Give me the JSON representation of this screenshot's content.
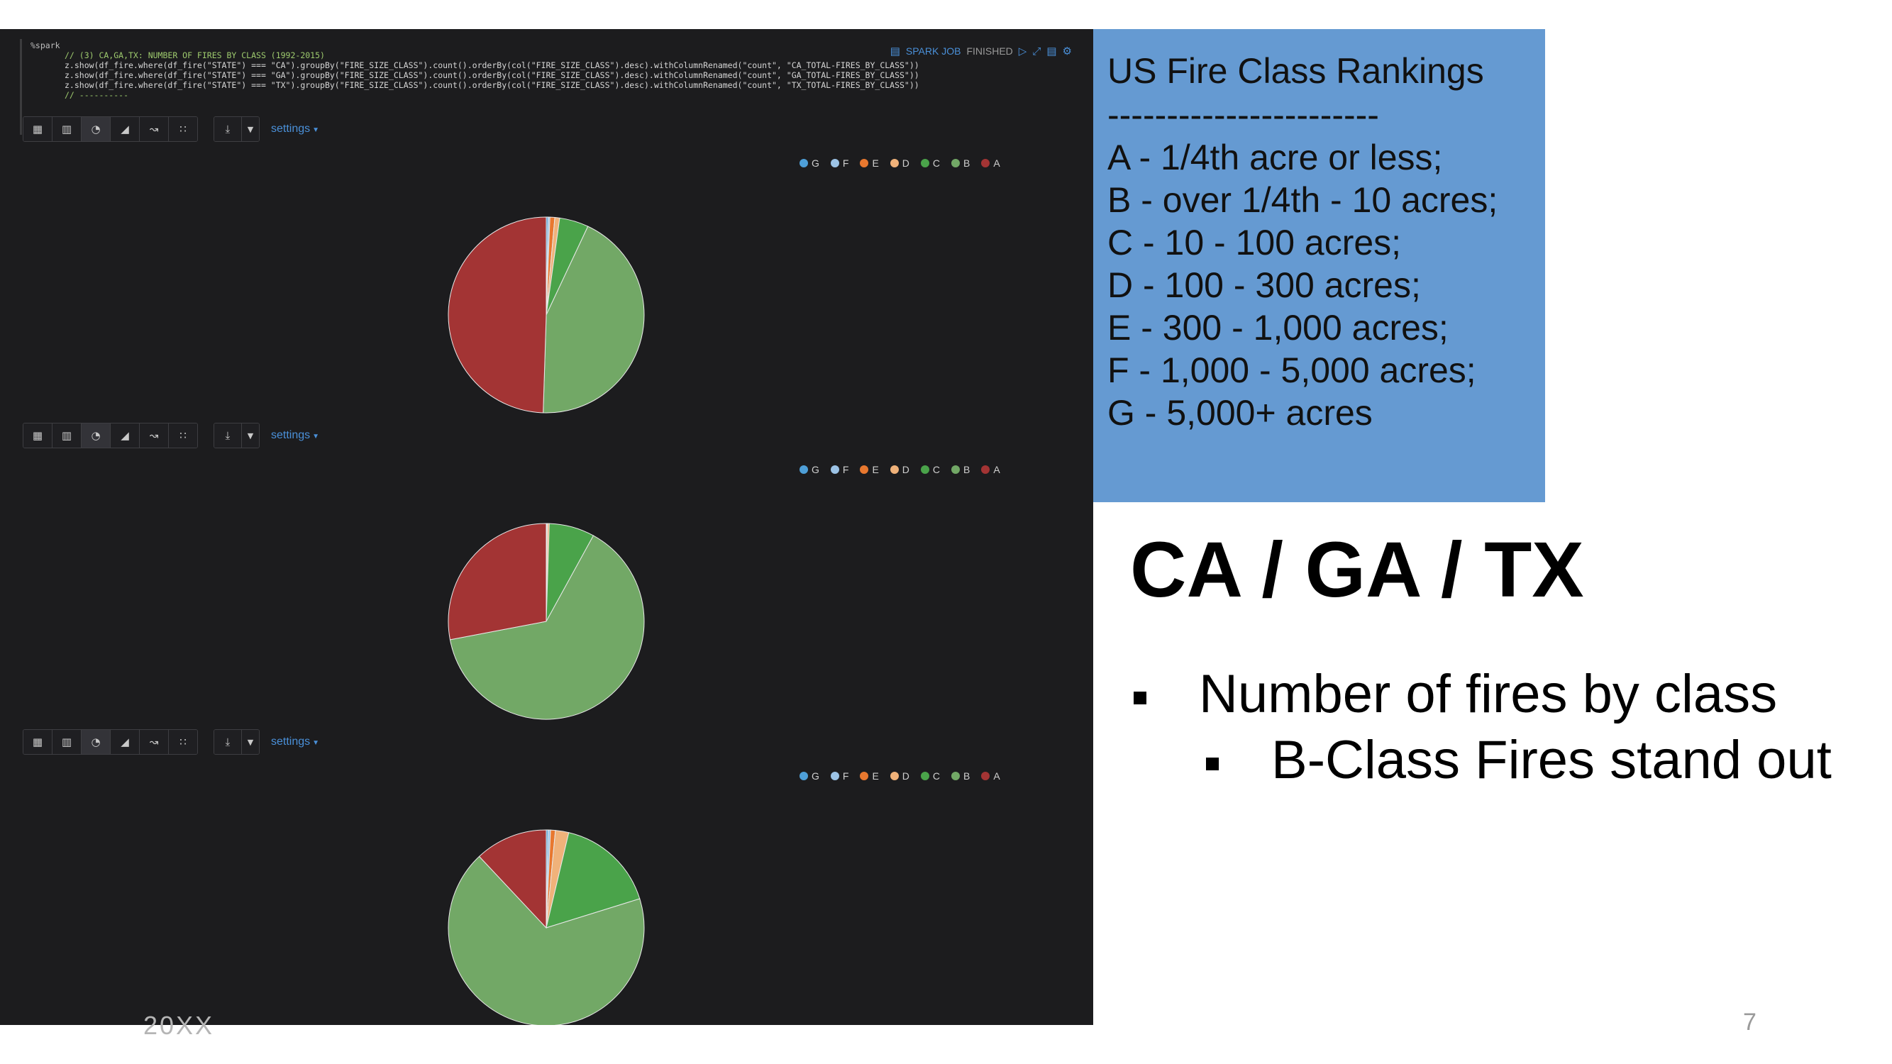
{
  "notebook": {
    "code": {
      "magic": "%spark",
      "comment": "// (3) CA,GA,TX: NUMBER OF FIRES BY CLASS (1992-2015)",
      "lines": [
        "z.show(df_fire.where(df_fire(\"STATE\") === \"CA\").groupBy(\"FIRE_SIZE_CLASS\").count().orderBy(col(\"FIRE_SIZE_CLASS\").desc).withColumnRenamed(\"count\", \"CA_TOTAL-FIRES_BY_CLASS\"))",
        "z.show(df_fire.where(df_fire(\"STATE\") === \"GA\").groupBy(\"FIRE_SIZE_CLASS\").count().orderBy(col(\"FIRE_SIZE_CLASS\").desc).withColumnRenamed(\"count\", \"GA_TOTAL-FIRES_BY_CLASS\"))",
        "z.show(df_fire.where(df_fire(\"STATE\") === \"TX\").groupBy(\"FIRE_SIZE_CLASS\").count().orderBy(col(\"FIRE_SIZE_CLASS\").desc).withColumnRenamed(\"count\", \"TX_TOTAL-FIRES_BY_CLASS\"))"
      ],
      "last_line": "// ----------"
    },
    "status": {
      "job_label": "SPARK JOB",
      "state": "FINISHED"
    },
    "toolbar": {
      "settings_label": "settings",
      "view_icons": [
        "table-icon",
        "bar-chart-icon",
        "pie-chart-icon",
        "area-chart-icon",
        "line-chart-icon",
        "scatter-chart-icon"
      ],
      "download_icon": "download-icon"
    }
  },
  "chart_data": [
    {
      "type": "pie",
      "state": "CA",
      "categories": [
        "G",
        "F",
        "E",
        "D",
        "C",
        "B",
        "A"
      ],
      "colors": [
        "#4e9fd8",
        "#9cc3e6",
        "#e8782f",
        "#f0b27a",
        "#4aa34a",
        "#72a866",
        "#a33434"
      ],
      "values": [
        0.3,
        0.3,
        0.8,
        0.8,
        4.8,
        43.5,
        49.5
      ],
      "legend_position": "top-right"
    },
    {
      "type": "pie",
      "state": "GA",
      "categories": [
        "G",
        "F",
        "E",
        "D",
        "C",
        "B",
        "A"
      ],
      "colors": [
        "#4e9fd8",
        "#9cc3e6",
        "#e8782f",
        "#f0b27a",
        "#4aa34a",
        "#72a866",
        "#a33434"
      ],
      "values": [
        0.05,
        0.05,
        0.1,
        0.3,
        7.5,
        64.0,
        28.0
      ],
      "legend_position": "top-right"
    },
    {
      "type": "pie",
      "state": "TX",
      "categories": [
        "G",
        "F",
        "E",
        "D",
        "C",
        "B",
        "A"
      ],
      "colors": [
        "#4e9fd8",
        "#9cc3e6",
        "#e8782f",
        "#f0b27a",
        "#4aa34a",
        "#72a866",
        "#a33434"
      ],
      "values": [
        0.3,
        0.4,
        0.8,
        2.2,
        16.5,
        67.8,
        12.0
      ],
      "legend_position": "top-right"
    }
  ],
  "ranking": {
    "title": "US Fire Class Rankings",
    "separator": "-----------------------",
    "lines": [
      "A - 1/4th acre or less;",
      "B - over 1/4th - 10 acres;",
      "C - 10 - 100 acres;",
      "D - 100 - 300 acres;",
      "E - 300 - 1,000 acres;",
      "F - 1,000 - 5,000 acres;",
      "G - 5,000+ acres"
    ]
  },
  "slide": {
    "title": "CA / GA / TX",
    "bullet_1": "Number of fires by class",
    "bullet_2": "B-Class Fires stand out",
    "footer_year": "20XX",
    "page_number": "7"
  }
}
